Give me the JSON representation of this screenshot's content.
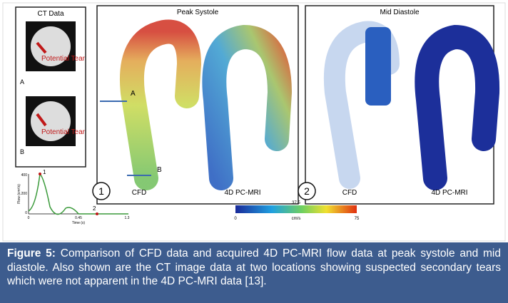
{
  "figure": {
    "ct_panel": {
      "title": "CT Data",
      "images": [
        {
          "label": "A",
          "annotation": "Potential Tear"
        },
        {
          "label": "B",
          "annotation": "Potential Tear"
        }
      ]
    },
    "peak_systole": {
      "title": "Peak Systole",
      "number": "1",
      "left_label": "CFD",
      "right_label": "4D PC-MRI",
      "cut_labels": [
        "A",
        "B"
      ]
    },
    "mid_diastole": {
      "title": "Mid Diastole",
      "number": "2",
      "left_label": "CFD",
      "right_label": "4D PC-MRI"
    },
    "colorbar": {
      "ticks": [
        "0",
        "37.5",
        "75"
      ],
      "unit": "cm/s"
    },
    "flow_plot": {
      "y_label": "Flow (cm³/s)",
      "x_label": "Time (s)",
      "yticks": [
        "400",
        "200",
        "0"
      ],
      "xticks": [
        "0",
        "0.45",
        "1.3"
      ],
      "markers": [
        "1",
        "2"
      ]
    }
  },
  "caption": {
    "label": "Figure 5:",
    "text": "Comparison of CFD data and acquired 4D PC-MRI flow data at peak systole and mid diastole. Also shown are the CT image data at two locations showing suspected secondary tears which were not apparent in the 4D PC-MRI data [13]."
  }
}
